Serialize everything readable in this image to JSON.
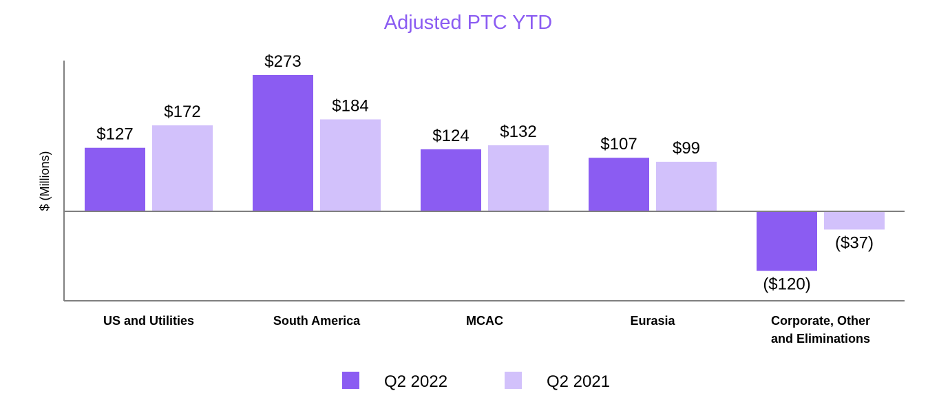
{
  "chart_data": {
    "type": "bar",
    "title": "Adjusted PTC YTD",
    "ylabel": "$ (Millions)",
    "xlabel": "",
    "categories": [
      "US and Utilities",
      "South America",
      "MCAC",
      "Eurasia",
      "Corporate, Other and Eliminations"
    ],
    "category_lines": [
      [
        "US and Utilities"
      ],
      [
        "South America"
      ],
      [
        "MCAC"
      ],
      [
        "Eurasia"
      ],
      [
        "Corporate, Other",
        "and Eliminations"
      ]
    ],
    "series": [
      {
        "name": "Q2 2022",
        "color": "#8b5cf2",
        "values": [
          127,
          273,
          124,
          107,
          -120
        ],
        "labels": [
          "$127",
          "$273",
          "$124",
          "$107",
          "($120)"
        ]
      },
      {
        "name": "Q2 2021",
        "color": "#d2c1fb",
        "values": [
          172,
          184,
          132,
          99,
          -37
        ],
        "labels": [
          "$172",
          "$184",
          "$132",
          "$99",
          "($37)"
        ]
      }
    ],
    "ylim": [
      -180,
      302
    ],
    "grid": false,
    "legend_position": "bottom",
    "title_color": "#8b5cf2",
    "axis_color": "#7f7f7f",
    "text_color": "#000000"
  }
}
